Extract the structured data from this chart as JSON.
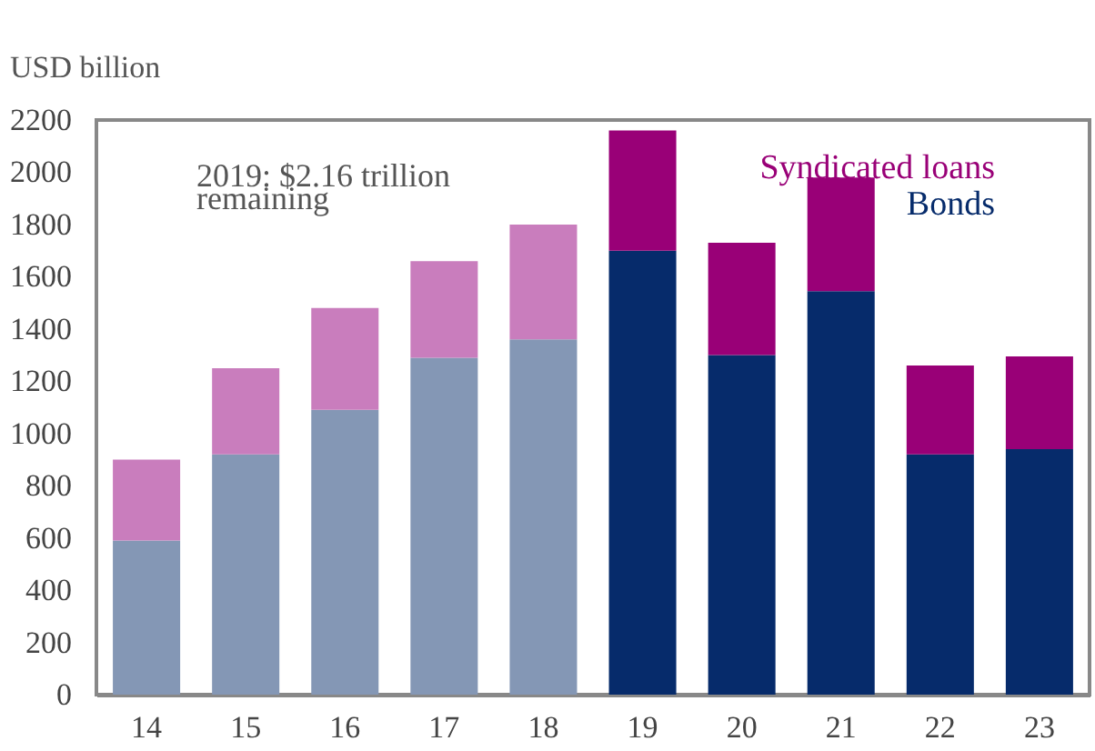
{
  "chart_data": {
    "type": "bar",
    "stacked": true,
    "ylabel": "USD billion",
    "categories": [
      "14",
      "15",
      "16",
      "17",
      "18",
      "19",
      "20",
      "21",
      "22",
      "23"
    ],
    "series": [
      {
        "name": "Bonds",
        "color": "#062b6b",
        "colors": [
          "#8497b5",
          "#8497b5",
          "#8497b5",
          "#8497b5",
          "#8497b5",
          "#062b6b",
          "#062b6b",
          "#062b6b",
          "#062b6b",
          "#062b6b"
        ],
        "values": [
          590,
          920,
          1090,
          1290,
          1360,
          1700,
          1300,
          1545,
          920,
          940
        ]
      },
      {
        "name": "Syndicated loans",
        "color": "#990077",
        "colors": [
          "#c97dbd",
          "#c97dbd",
          "#c97dbd",
          "#c97dbd",
          "#c97dbd",
          "#990077",
          "#990077",
          "#990077",
          "#990077",
          "#990077"
        ],
        "values": [
          310,
          330,
          390,
          370,
          440,
          460,
          430,
          435,
          340,
          355
        ]
      }
    ],
    "ylim": [
      0,
      2200
    ],
    "yticks": [
      0,
      200,
      400,
      600,
      800,
      1000,
      1200,
      1400,
      1600,
      1800,
      2000,
      2200
    ],
    "grid": false,
    "legend": "top right",
    "annotations": [
      "2019: $2.16 trillion",
      "remaining"
    ]
  }
}
